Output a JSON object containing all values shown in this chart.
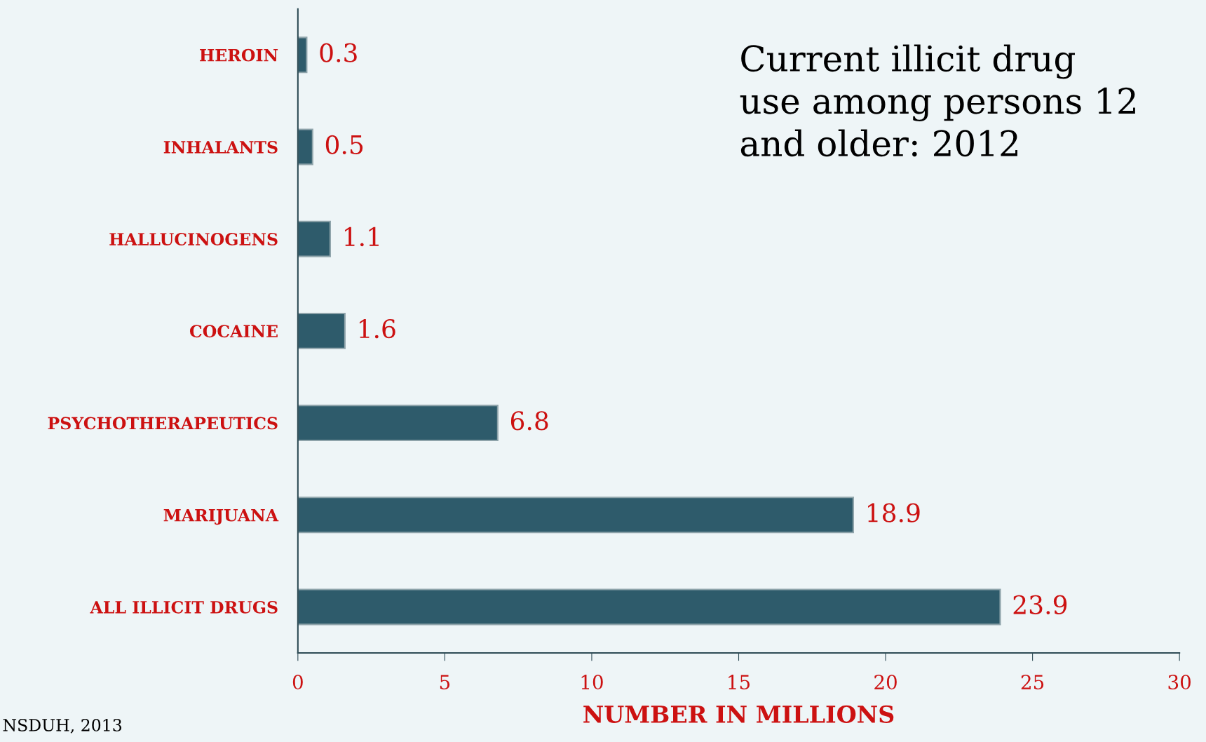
{
  "chart_data": {
    "type": "bar",
    "orientation": "horizontal",
    "title": "Current illicit drug\nuse among persons 12\nand older: 2012",
    "categories": [
      "HEROIN",
      "INHALANTS",
      "HALLUCINOGENS",
      "COCAINE",
      "PSYCHOTHERAPEUTICS",
      "MARIJUANA",
      "ALL ILLICIT DRUGS"
    ],
    "values": [
      0.3,
      0.5,
      1.1,
      1.6,
      6.8,
      18.9,
      23.9
    ],
    "color": "#2e5b6b",
    "xlim": [
      0,
      30
    ],
    "xticks": [
      0,
      5,
      10,
      15,
      20,
      25,
      30
    ],
    "xlabel": "NUMBER IN MILLIONS",
    "data_labels": true,
    "grid": false,
    "annotations": [
      "NSDUH, 2013"
    ]
  }
}
